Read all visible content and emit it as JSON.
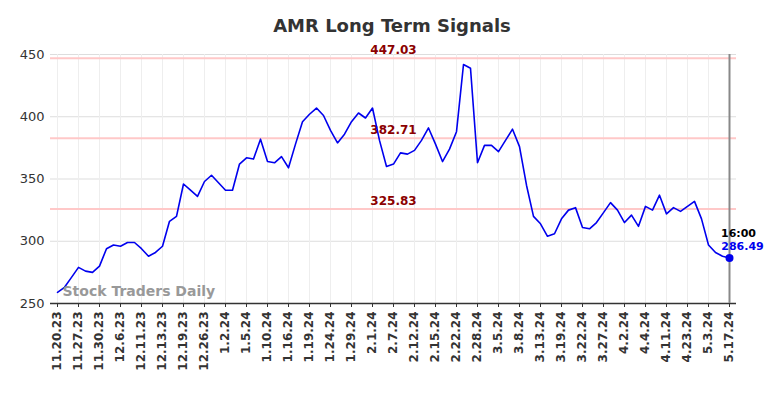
{
  "chart_data": {
    "type": "line",
    "title": "AMR Long Term Signals",
    "categories": [
      "11.20.23",
      null,
      null,
      "11.27.23",
      null,
      null,
      "11.30.23",
      null,
      null,
      "12.6.23",
      null,
      null,
      "12.11.23",
      null,
      null,
      "12.13.23",
      null,
      null,
      "12.19.23",
      null,
      null,
      "12.26.23",
      null,
      null,
      "1.2.24",
      null,
      null,
      "1.5.24",
      null,
      null,
      "1.10.24",
      null,
      null,
      "1.16.24",
      null,
      null,
      "1.19.24",
      null,
      null,
      "1.24.24",
      null,
      null,
      "1.29.24",
      null,
      null,
      "2.1.24",
      null,
      null,
      "2.7.24",
      null,
      null,
      "2.12.24",
      null,
      null,
      "2.15.24",
      null,
      null,
      "2.22.24",
      null,
      null,
      "2.28.24",
      null,
      null,
      "3.5.24",
      null,
      null,
      "3.8.24",
      null,
      null,
      "3.13.24",
      null,
      null,
      "3.19.24",
      null,
      null,
      "3.22.24",
      null,
      null,
      "3.27.24",
      null,
      null,
      "4.2.24",
      null,
      null,
      "4.4.24",
      null,
      null,
      "4.11.24",
      null,
      null,
      "4.23.24",
      null,
      null,
      "5.3.24",
      null,
      null,
      "5.17.24"
    ],
    "values": [
      259,
      263,
      271,
      279,
      276,
      275,
      280,
      294,
      297,
      296,
      299,
      299,
      294,
      288,
      291,
      296,
      316,
      320,
      346,
      341,
      336,
      348,
      353,
      347,
      341,
      341,
      362,
      367,
      366,
      382,
      364,
      363,
      368,
      359,
      378,
      396,
      402,
      407,
      401,
      389,
      379,
      386,
      396,
      403,
      399,
      407,
      381,
      360,
      362,
      371,
      370,
      373,
      381,
      391,
      378,
      364,
      374,
      388,
      442,
      439,
      363,
      377,
      377,
      372,
      381,
      390,
      376,
      345,
      320,
      314,
      304,
      306,
      318,
      325,
      327,
      311,
      310,
      315,
      323,
      331,
      325,
      315,
      321,
      312,
      328,
      325,
      337,
      322,
      327,
      324,
      328,
      332,
      318,
      297,
      291,
      288,
      286.49
    ],
    "color": "#0000ee",
    "ylim": [
      250,
      450
    ],
    "yticks": [
      250,
      300,
      350,
      400,
      450
    ],
    "grid": true,
    "levels": [
      447.03,
      382.71,
      325.83
    ],
    "last_time_label": "16:00",
    "watermark": "Stock Traders Daily"
  }
}
